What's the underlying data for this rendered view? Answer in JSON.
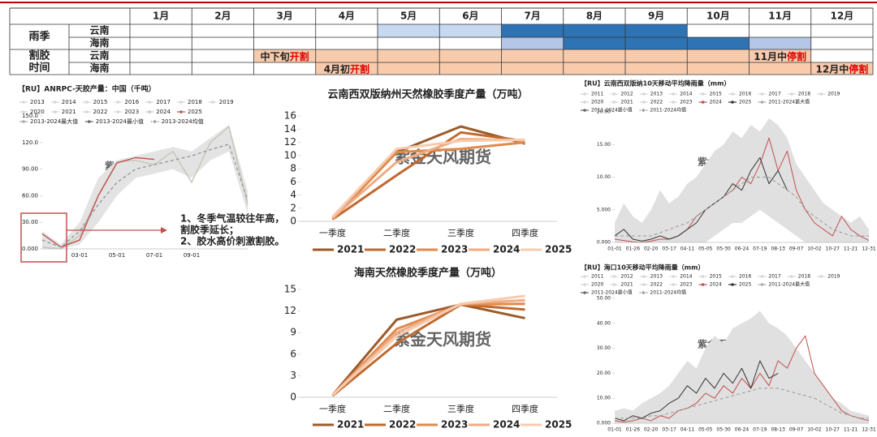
{
  "watermark": "紫金天风期货",
  "table": {
    "months": [
      "1月",
      "2月",
      "3月",
      "4月",
      "5月",
      "6月",
      "7月",
      "8月",
      "9月",
      "10月",
      "11月",
      "12月"
    ],
    "groups": [
      {
        "label": [
          "雨季"
        ],
        "rows": [
          {
            "region": "云南",
            "cells": [
              null,
              null,
              null,
              null,
              {
                "color": "#c6d9f0"
              },
              {
                "color": "#c6d9f0"
              },
              {
                "color": "#2e74b5"
              },
              {
                "color": "#2e74b5"
              },
              {
                "color": "#2e74b5"
              },
              null,
              null,
              null
            ]
          },
          {
            "region": "海南",
            "cells": [
              null,
              null,
              null,
              null,
              null,
              null,
              {
                "color": "#b4c7e7"
              },
              {
                "color": "#2e74b5"
              },
              {
                "color": "#2e74b5"
              },
              {
                "color": "#2e74b5"
              },
              {
                "color": "#b4c7e7"
              },
              null
            ]
          }
        ]
      },
      {
        "label": [
          "割胶",
          "时间"
        ],
        "rows": [
          {
            "region": "云南",
            "cells": [
              null,
              null,
              {
                "color": "#f8cbad",
                "text": [
                  "中下旬",
                  "开割"
                ]
              },
              {
                "color": "#f8cbad"
              },
              {
                "color": "#f8cbad"
              },
              {
                "color": "#f8cbad"
              },
              {
                "color": "#f8cbad"
              },
              {
                "color": "#f8cbad"
              },
              {
                "color": "#f8cbad"
              },
              {
                "color": "#f8cbad"
              },
              {
                "color": "#f8cbad",
                "text": [
                  "11月中",
                  "停割"
                ]
              },
              null
            ]
          },
          {
            "region": "海南",
            "cells": [
              null,
              null,
              null,
              {
                "color": "#f8cbad",
                "text": [
                  "4月初",
                  "开割"
                ]
              },
              {
                "color": "#f8cbad"
              },
              {
                "color": "#f8cbad"
              },
              {
                "color": "#f8cbad"
              },
              {
                "color": "#f8cbad"
              },
              {
                "color": "#f8cbad"
              },
              {
                "color": "#f8cbad"
              },
              {
                "color": "#f8cbad"
              },
              {
                "color": "#f8cbad",
                "text": [
                  "12月中",
                  "停割"
                ]
              }
            ]
          }
        ]
      }
    ]
  },
  "chart_data": [
    {
      "type": "line",
      "title": "【RU】ANRPC-天胶产量：中国（千吨）",
      "categories": [
        null,
        null,
        "03-01",
        null,
        "05-01",
        null,
        "07-01",
        null,
        "09-01",
        null,
        null,
        null
      ],
      "ylim": [
        0,
        150
      ],
      "yticks": [
        {
          "value": 0,
          "label": "0.000"
        },
        {
          "value": 30,
          "label": "30.00"
        },
        {
          "value": 60,
          "label": "60.00"
        },
        {
          "value": 90,
          "label": "90.00"
        },
        {
          "value": 120,
          "label": "120.0"
        },
        {
          "value": 150,
          "label": "150.0"
        }
      ],
      "legend_inactive": [
        "2013",
        "2014",
        "2015",
        "2016",
        "2017",
        "2018",
        "2019",
        "2020",
        "2021",
        "2022",
        "2023"
      ],
      "series": [
        {
          "name": "2024",
          "color": "#c8c4b8",
          "values": [
            2,
            0,
            15,
            60,
            98,
            100,
            95,
            110,
            75,
            120,
            138,
            50
          ]
        },
        {
          "name": "2025",
          "color": "#c0504d",
          "values": [
            17,
            2,
            10,
            60,
            97,
            103,
            101,
            null,
            null,
            null,
            null,
            null
          ]
        },
        {
          "name": "2013-2024最大值",
          "color": "#e3e3e3",
          "fill": true,
          "values": [
            20,
            5,
            30,
            80,
            100,
            105,
            110,
            115,
            110,
            125,
            140,
            65
          ]
        },
        {
          "name": "2013-2024最小值",
          "color": "#ffffff",
          "fill": true,
          "values": [
            0,
            0,
            5,
            30,
            60,
            80,
            85,
            90,
            80,
            100,
            110,
            40
          ]
        },
        {
          "name": "2013-2024均值",
          "color": "#999999",
          "dash": true,
          "values": [
            10,
            2,
            20,
            50,
            75,
            90,
            95,
            100,
            105,
            112,
            118,
            55
          ]
        }
      ],
      "annotation": [
        "1、冬季气温较往年高，",
        "割胶季延长；",
        "2、胶水高价刺激割胶。"
      ]
    },
    {
      "type": "line",
      "title": "云南西双版纳州天然橡胶季度产量（万吨）",
      "categories": [
        "一季度",
        "二季度",
        "三季度",
        "四季度"
      ],
      "ylim": [
        0,
        16
      ],
      "yticks": [
        0,
        2,
        4,
        6,
        8,
        10,
        12,
        14,
        16
      ],
      "series": [
        {
          "name": "2021",
          "color": "#9c5a2a",
          "values": [
            0.3,
            10.5,
            14.4,
            11.8
          ]
        },
        {
          "name": "2022",
          "color": "#c0692e",
          "values": [
            0.3,
            7,
            13.5,
            12.2
          ]
        },
        {
          "name": "2023",
          "color": "#e08a4a",
          "values": [
            0.3,
            10.5,
            11,
            12
          ]
        },
        {
          "name": "2024",
          "color": "#efab82",
          "values": [
            0.5,
            9,
            12.5,
            12.3
          ]
        },
        {
          "name": "2025",
          "color": "#f6cbb0",
          "values": [
            0.7,
            11,
            12.2,
            12.4
          ]
        }
      ]
    },
    {
      "type": "line",
      "title": "海南天然橡胶季度产量（万吨）",
      "categories": [
        "一季度",
        "二季度",
        "三季度",
        "四季度"
      ],
      "ylim": [
        0,
        15
      ],
      "yticks": [
        0,
        3,
        6,
        9,
        12,
        15
      ],
      "series": [
        {
          "name": "2021",
          "color": "#9c5a2a",
          "values": [
            0.3,
            10.8,
            12.9,
            11
          ]
        },
        {
          "name": "2022",
          "color": "#c0692e",
          "values": [
            0.2,
            7.5,
            12.9,
            12.2
          ]
        },
        {
          "name": "2023",
          "color": "#e08a4a",
          "values": [
            0.3,
            9.5,
            12.9,
            13
          ]
        },
        {
          "name": "2024",
          "color": "#efab82",
          "values": [
            0.3,
            9,
            13,
            13.5
          ]
        },
        {
          "name": "2025",
          "color": "#f6cbb0",
          "values": [
            0.3,
            8.5,
            13,
            14.1
          ]
        }
      ]
    },
    {
      "type": "line",
      "title": "【RU】云南西双版纳10天移动平均降雨量（mm）",
      "categories": [
        "01-01",
        null,
        "01-26",
        null,
        "02-20",
        null,
        "03-17",
        null,
        "04-11",
        null,
        "05-05",
        null,
        "05-30",
        null,
        "06-24",
        null,
        "07-19",
        null,
        "08-13",
        null,
        "09-07",
        null,
        "10-02",
        null,
        "10-27",
        null,
        "11-21",
        null,
        "12-31"
      ],
      "ylim": [
        0,
        20
      ],
      "yticks": [
        {
          "value": 0,
          "label": "0.000"
        },
        {
          "value": 5,
          "label": "5.000"
        },
        {
          "value": 10,
          "label": "10.00"
        },
        {
          "value": 15,
          "label": "15.00"
        },
        {
          "value": 20,
          "label": "20.00"
        }
      ],
      "legend_inactive": [
        "2011",
        "2012",
        "2013",
        "2014",
        "2015",
        "2016",
        "2017",
        "2018",
        "2019",
        "2020",
        "2021",
        "2022",
        "2023"
      ],
      "series": [
        {
          "name": "2024",
          "color": "#c0504d",
          "values": [
            0.5,
            0.3,
            0.1,
            0,
            0.2,
            0.5,
            0.5,
            1,
            2,
            4,
            5,
            6,
            7,
            8,
            10,
            9,
            12,
            16,
            11,
            14,
            8,
            5,
            3,
            2,
            1,
            4,
            2,
            1,
            0.3
          ]
        },
        {
          "name": "2025",
          "color": "#333333",
          "values": [
            1,
            2,
            0.5,
            0.2,
            0.5,
            1,
            0.5,
            1,
            2,
            3,
            5,
            6,
            7,
            9,
            8,
            11,
            13,
            9,
            11,
            8,
            null,
            null,
            null,
            null,
            null,
            null,
            null,
            null,
            null
          ]
        },
        {
          "name": "2011-2024最大值",
          "color": "#e0e0e0",
          "fill": true,
          "values": [
            3,
            6,
            4,
            3,
            5,
            8,
            6,
            7,
            9,
            10,
            12,
            14,
            15,
            17,
            16,
            18,
            17,
            19,
            18,
            16,
            12,
            10,
            8,
            6,
            5,
            4,
            3,
            4,
            2
          ]
        },
        {
          "name": "2011-2024最小值",
          "color": "#ffffff",
          "fill": true,
          "values": [
            0,
            0,
            0,
            0,
            0,
            0,
            0,
            0,
            0,
            0,
            0,
            1,
            2,
            3,
            3,
            4,
            5,
            4,
            3,
            2,
            1,
            0,
            0,
            0,
            0,
            0,
            0,
            0,
            0
          ]
        },
        {
          "name": "2011-2024均值",
          "color": "#999999",
          "dash": true,
          "values": [
            1,
            1,
            1,
            1,
            1,
            1.5,
            2,
            2.5,
            3,
            4,
            5,
            6,
            7,
            8,
            9,
            10,
            10,
            10,
            9,
            8,
            7,
            5,
            4,
            3,
            2,
            1.5,
            1,
            1,
            1
          ]
        }
      ]
    },
    {
      "type": "line",
      "title": "【RU】海口10天移动平均降雨量（mm）",
      "categories": [
        "01-01",
        null,
        "01-26",
        null,
        "02-20",
        null,
        "03-17",
        null,
        "04-11",
        null,
        "05-05",
        null,
        "05-30",
        null,
        "06-24",
        null,
        "07-19",
        null,
        "08-13",
        null,
        "09-07",
        null,
        "10-02",
        null,
        "10-27",
        null,
        "11-21",
        null,
        "12-31"
      ],
      "ylim": [
        0,
        50
      ],
      "yticks": [
        {
          "value": 0,
          "label": "0.000"
        },
        {
          "value": 10,
          "label": "10.00"
        },
        {
          "value": 20,
          "label": "20.00"
        },
        {
          "value": 30,
          "label": "30.00"
        },
        {
          "value": 40,
          "label": "40.00"
        },
        {
          "value": 50,
          "label": "50.00"
        }
      ],
      "legend_inactive": [
        "2011",
        "2012",
        "2013",
        "2014",
        "2015",
        "2016",
        "2017",
        "2018",
        "2019",
        "2020",
        "2021",
        "2022",
        "2023"
      ],
      "series": [
        {
          "name": "2024",
          "color": "#c0504d",
          "values": [
            1,
            0.5,
            1,
            2,
            1,
            3,
            2,
            5,
            6,
            8,
            12,
            10,
            15,
            12,
            18,
            14,
            20,
            15,
            25,
            22,
            30,
            35,
            20,
            15,
            10,
            5,
            3,
            2,
            1
          ]
        },
        {
          "name": "2025",
          "color": "#333333",
          "values": [
            2,
            1,
            3,
            2,
            4,
            5,
            8,
            10,
            15,
            12,
            18,
            14,
            20,
            16,
            22,
            14,
            25,
            18,
            20,
            null,
            null,
            null,
            null,
            null,
            null,
            null,
            null,
            null,
            null
          ]
        },
        {
          "name": "2011-2024最大值",
          "color": "#e0e0e0",
          "fill": true,
          "values": [
            5,
            6,
            5,
            8,
            10,
            12,
            15,
            20,
            25,
            22,
            30,
            35,
            32,
            38,
            40,
            42,
            45,
            40,
            38,
            35,
            30,
            25,
            20,
            15,
            10,
            8,
            5,
            4,
            3
          ]
        },
        {
          "name": "2011-2024最小值",
          "color": "#ffffff",
          "fill": true,
          "values": [
            0,
            0,
            0,
            0,
            0,
            0,
            0,
            0,
            0,
            0,
            0,
            0,
            0,
            0,
            0,
            0,
            0,
            0,
            0,
            0,
            0,
            0,
            0,
            0,
            0,
            0,
            0,
            0,
            0
          ]
        },
        {
          "name": "2011-2024均值",
          "color": "#999999",
          "dash": true,
          "values": [
            2,
            2,
            2,
            2,
            3,
            3,
            4,
            5,
            6,
            7,
            8,
            9,
            10,
            11,
            12,
            13,
            14,
            14,
            14,
            13,
            12,
            11,
            10,
            8,
            6,
            4,
            3,
            2,
            2
          ]
        }
      ]
    }
  ]
}
